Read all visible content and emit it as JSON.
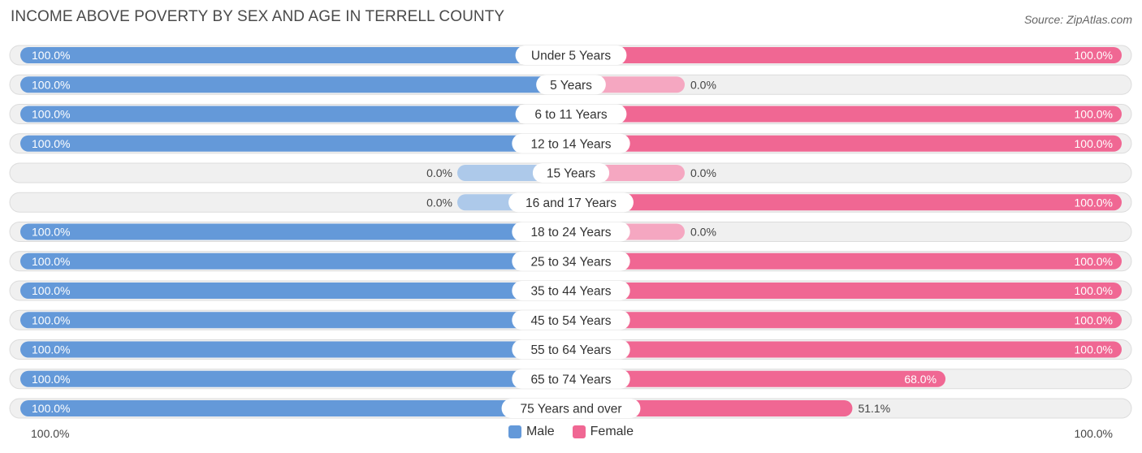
{
  "title": "INCOME ABOVE POVERTY BY SEX AND AGE IN TERRELL COUNTY",
  "source": "Source: ZipAtlas.com",
  "colors": {
    "male": "#6499d9",
    "male_light": "#adc9ea",
    "female": "#f06793",
    "female_light": "#f5a7c1",
    "track": "#f0f0f0",
    "track_border": "#dcdcdc"
  },
  "chart_data": {
    "type": "bar",
    "orientation": "horizontal-diverging",
    "title": "INCOME ABOVE POVERTY BY SEX AND AGE IN TERRELL COUNTY",
    "categories": [
      "Under 5 Years",
      "5 Years",
      "6 to 11 Years",
      "12 to 14 Years",
      "15 Years",
      "16 and 17 Years",
      "18 to 24 Years",
      "25 to 34 Years",
      "35 to 44 Years",
      "45 to 54 Years",
      "55 to 64 Years",
      "65 to 74 Years",
      "75 Years and over"
    ],
    "series": [
      {
        "name": "Male",
        "values": [
          100.0,
          100.0,
          100.0,
          100.0,
          0.0,
          0.0,
          100.0,
          100.0,
          100.0,
          100.0,
          100.0,
          100.0,
          100.0
        ]
      },
      {
        "name": "Female",
        "values": [
          100.0,
          0.0,
          100.0,
          100.0,
          0.0,
          100.0,
          0.0,
          100.0,
          100.0,
          100.0,
          100.0,
          68.0,
          51.1
        ]
      }
    ],
    "labels": {
      "Male": [
        "100.0%",
        "100.0%",
        "100.0%",
        "100.0%",
        "0.0%",
        "0.0%",
        "100.0%",
        "100.0%",
        "100.0%",
        "100.0%",
        "100.0%",
        "100.0%",
        "100.0%"
      ],
      "Female": [
        "100.0%",
        "0.0%",
        "100.0%",
        "100.0%",
        "0.0%",
        "100.0%",
        "0.0%",
        "100.0%",
        "100.0%",
        "100.0%",
        "100.0%",
        "68.0%",
        "51.1%"
      ]
    },
    "xlim": [
      0,
      100
    ],
    "axis_left_label": "100.0%",
    "axis_right_label": "100.0%",
    "legend": [
      "Male",
      "Female"
    ],
    "legend_position": "bottom-center"
  }
}
